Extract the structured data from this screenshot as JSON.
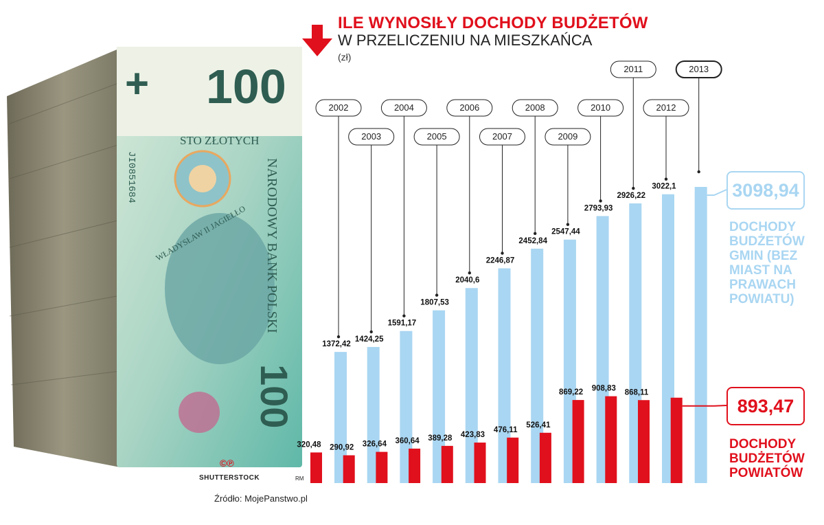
{
  "header": {
    "title": "ILE WYNOSIŁY DOCHODY BUDŻETÓW",
    "subtitle": "W PRZELICZENIU NA MIESZKAŃCA",
    "unit": "(zł)"
  },
  "colors": {
    "gmin": "#a9d6f2",
    "powiat": "#e0101c",
    "arrow": "#e0101c"
  },
  "icons": {
    "arrow": "arrow-down-icon"
  },
  "photo": {
    "banknote_number": "100",
    "banknote_text": "STO ZŁOTYCH",
    "bank_text": "NARODOWY BANK POLSKI",
    "portrait_text": "WŁADYSŁAW II JAGIEŁŁO",
    "serial": "JI0851684"
  },
  "credits": {
    "cp": "©℗",
    "photo": "SHUTTERSTOCK",
    "rm": "RM",
    "source": "Źródło: MojePanstwo.pl"
  },
  "legend": {
    "gmin_value": "3098,94",
    "gmin_label": "DOCHODY BUDŻETÓW GMIN (BEZ MIAST NA PRAWACH POWIATU)",
    "powiat_value": "893,47",
    "powiat_label": "DOCHODY BUDŻETÓW POWIATÓW"
  },
  "chart_data": {
    "type": "bar",
    "title": "ILE WYNOSIŁY DOCHODY BUDŻETÓW",
    "subtitle": "W PRZELICZENIU NA MIESZKAŃCA",
    "unit": "(zł)",
    "categories": [
      "2002",
      "2003",
      "2004",
      "2005",
      "2006",
      "2007",
      "2008",
      "2009",
      "2010",
      "2011",
      "2012",
      "2013"
    ],
    "series": [
      {
        "name": "DOCHODY BUDŻETÓW GMIN (BEZ MIAST NA PRAWACH POWIATU)",
        "values": [
          1372.42,
          1424.25,
          1591.17,
          1807.53,
          2040.6,
          2246.87,
          2452.84,
          2547.44,
          2793.93,
          2926.22,
          3022.1,
          3098.94
        ],
        "labels": [
          "1372,42",
          "1424,25",
          "1591,17",
          "1807,53",
          "2040,6",
          "2246,87",
          "2452,84",
          "2547,44",
          "2793,93",
          "2926,22",
          "3022,1",
          ""
        ]
      },
      {
        "name": "DOCHODY BUDŻETÓW POWIATÓW",
        "values": [
          320.48,
          290.92,
          326.64,
          360.64,
          389.28,
          423.83,
          476.11,
          526.41,
          869.22,
          908.83,
          868.11,
          893.47
        ],
        "labels": [
          "320,48",
          "290,92",
          "326,64",
          "360,64",
          "389,28",
          "423,83",
          "476,11",
          "526,41",
          "869,22",
          "908,83",
          "868,11",
          ""
        ]
      }
    ],
    "highlight": "2013",
    "legend_position": "right",
    "grid": false
  }
}
